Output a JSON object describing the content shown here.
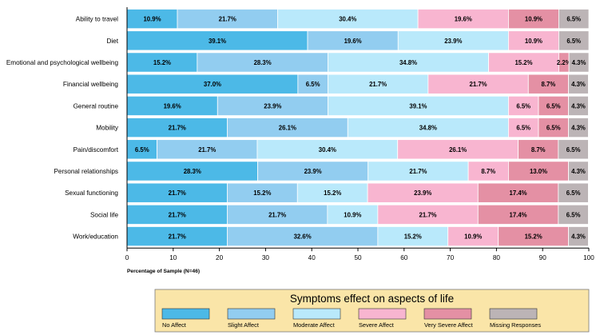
{
  "chart_data": {
    "type": "bar",
    "orientation": "horizontal",
    "stacked": true,
    "categories": [
      "Ability to travel",
      "Diet",
      "Emotional and psychological wellbeing",
      "Financial wellbeing",
      "General routine",
      "Mobility",
      "Pain/discomfort",
      "Personal relationships",
      "Sexual functioning",
      "Social life",
      "Work/education"
    ],
    "series": [
      {
        "name": "No Affect",
        "color": "#4cb9e7",
        "values": [
          10.9,
          39.1,
          15.2,
          37.0,
          19.6,
          21.7,
          6.5,
          28.3,
          21.7,
          21.7,
          21.7
        ]
      },
      {
        "name": "Slight Affect",
        "color": "#92cdf0",
        "values": [
          21.7,
          19.6,
          28.3,
          6.5,
          23.9,
          26.1,
          21.7,
          23.9,
          15.2,
          21.7,
          32.6
        ]
      },
      {
        "name": "Moderate Affect",
        "color": "#b9e9fb",
        "values": [
          30.4,
          23.9,
          34.8,
          21.7,
          39.1,
          34.8,
          30.4,
          21.7,
          15.2,
          10.9,
          15.2
        ]
      },
      {
        "name": "Severe Affect",
        "color": "#f8b5d0",
        "values": [
          19.6,
          10.9,
          15.2,
          21.7,
          6.5,
          6.5,
          26.1,
          8.7,
          23.9,
          21.7,
          10.9
        ]
      },
      {
        "name": "Very Severe Affect",
        "color": "#e490a4",
        "values": [
          10.9,
          0,
          2.2,
          8.7,
          6.5,
          6.5,
          8.7,
          13.0,
          17.4,
          17.4,
          15.2
        ]
      },
      {
        "name": "Missing Responses",
        "color": "#bcb4b6",
        "values": [
          6.5,
          6.5,
          4.3,
          4.3,
          4.3,
          4.3,
          6.5,
          4.3,
          6.5,
          6.5,
          4.3
        ]
      }
    ],
    "xlabel": "Percentage of Sample (N=46)",
    "xlim": [
      0,
      100
    ],
    "xticks": [
      "0",
      "10",
      "20",
      "30",
      "40",
      "50",
      "60",
      "70",
      "80",
      "90",
      "100"
    ],
    "legend": {
      "title": "Symptoms effect on aspects of life",
      "placement": "bottom",
      "background": "#fae5a8"
    }
  }
}
